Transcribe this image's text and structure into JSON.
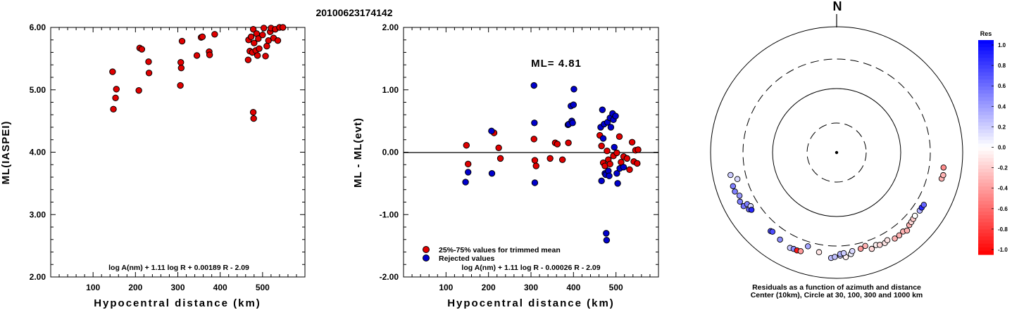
{
  "title": "20100623174142",
  "chart_data": [
    {
      "type": "scatter",
      "ylabel": "ML(IASPEI)",
      "xlabel": "Hypocentral distance (km)",
      "xlim": [
        0,
        600
      ],
      "ylim": [
        2.0,
        6.0
      ],
      "xticks": [
        "100",
        "200",
        "300",
        "400",
        "500"
      ],
      "yticks": [
        "2.00",
        "3.00",
        "4.00",
        "5.00",
        "6.00"
      ],
      "formula": "log A(nm) + 1.11 log R + 0.00189 R - 2.09",
      "point_color": "#e00000",
      "points": [
        [
          146,
          5.29
        ],
        [
          148,
          4.69
        ],
        [
          153,
          4.87
        ],
        [
          155,
          5.01
        ],
        [
          208,
          4.99
        ],
        [
          210,
          5.67
        ],
        [
          215,
          5.65
        ],
        [
          231,
          5.45
        ],
        [
          232,
          5.27
        ],
        [
          306,
          5.07
        ],
        [
          307,
          5.44
        ],
        [
          308,
          5.35
        ],
        [
          310,
          5.78
        ],
        [
          345,
          5.55
        ],
        [
          355,
          5.84
        ],
        [
          358,
          5.85
        ],
        [
          374,
          5.61
        ],
        [
          375,
          5.56
        ],
        [
          387,
          5.89
        ],
        [
          466,
          5.48
        ],
        [
          467,
          5.8
        ],
        [
          470,
          5.62
        ],
        [
          473,
          5.85
        ],
        [
          476,
          5.6
        ],
        [
          478,
          5.97
        ],
        [
          478,
          4.64
        ],
        [
          479,
          4.54
        ],
        [
          480,
          5.75
        ],
        [
          484,
          5.63
        ],
        [
          486,
          5.9
        ],
        [
          488,
          5.55
        ],
        [
          490,
          5.82
        ],
        [
          492,
          5.66
        ],
        [
          500,
          5.88
        ],
        [
          503,
          5.99
        ],
        [
          507,
          5.54
        ],
        [
          510,
          5.7
        ],
        [
          514,
          5.79
        ],
        [
          518,
          5.93
        ],
        [
          520,
          5.99
        ],
        [
          526,
          5.83
        ],
        [
          530,
          5.97
        ],
        [
          536,
          5.79
        ],
        [
          540,
          6.0
        ],
        [
          548,
          6.0
        ]
      ]
    },
    {
      "type": "scatter",
      "ylabel": "ML - ML(evt)",
      "xlabel": "Hypocentral distance (km)",
      "xlim": [
        0,
        600
      ],
      "ylim": [
        -2.0,
        2.0
      ],
      "xticks": [
        "100",
        "200",
        "300",
        "400",
        "500"
      ],
      "yticks": [
        "-2.00",
        "-1.00",
        "0.00",
        "1.00",
        "2.00"
      ],
      "annotation": "ML= 4.81",
      "formula": "log A(nm) + 1.11 log R - 0.00026 R - 2.09",
      "legend": [
        {
          "label": "25%-75% values for trimmed mean",
          "color": "#e00000"
        },
        {
          "label": "Rejected values",
          "color": "#0000cc"
        }
      ],
      "series": [
        {
          "color": "#e00000",
          "points": [
            [
              148,
              0.11
            ],
            [
              152,
              -0.19
            ],
            [
              213,
              0.31
            ],
            [
              224,
              0.07
            ],
            [
              228,
              -0.1
            ],
            [
              307,
              0.21
            ],
            [
              309,
              -0.13
            ],
            [
              312,
              -0.22
            ],
            [
              345,
              -0.1
            ],
            [
              357,
              0.15
            ],
            [
              362,
              0.13
            ],
            [
              374,
              -0.12
            ],
            [
              388,
              0.15
            ],
            [
              462,
              0.27
            ],
            [
              466,
              0.1
            ],
            [
              470,
              -0.17
            ],
            [
              474,
              -0.22
            ],
            [
              479,
              0.02
            ],
            [
              482,
              -0.12
            ],
            [
              486,
              -0.19
            ],
            [
              494,
              -0.06
            ],
            [
              502,
              -0.01
            ],
            [
              508,
              0.25
            ],
            [
              512,
              -0.16
            ],
            [
              518,
              -0.07
            ],
            [
              526,
              -0.1
            ],
            [
              532,
              -0.28
            ],
            [
              538,
              0.16
            ],
            [
              542,
              -0.15
            ],
            [
              546,
              0.03
            ],
            [
              550,
              -0.18
            ],
            [
              552,
              0.04
            ]
          ]
        },
        {
          "color": "#0000cc",
          "points": [
            [
              146,
              -0.48
            ],
            [
              152,
              -0.32
            ],
            [
              207,
              0.34
            ],
            [
              208,
              -0.34
            ],
            [
              307,
              1.07
            ],
            [
              308,
              0.47
            ],
            [
              309,
              -0.49
            ],
            [
              387,
              0.44
            ],
            [
              389,
              0.45
            ],
            [
              394,
              0.74
            ],
            [
              396,
              0.5
            ],
            [
              398,
              0.47
            ],
            [
              400,
              0.76
            ],
            [
              401,
              1.01
            ],
            [
              464,
              0.4
            ],
            [
              466,
              -0.46
            ],
            [
              468,
              0.68
            ],
            [
              470,
              0.22
            ],
            [
              472,
              0.45
            ],
            [
              474,
              -0.34
            ],
            [
              476,
              -0.36
            ],
            [
              477,
              -1.3
            ],
            [
              478,
              -1.41
            ],
            [
              480,
              0.48
            ],
            [
              482,
              -0.3
            ],
            [
              484,
              -0.38
            ],
            [
              486,
              0.55
            ],
            [
              488,
              0.4
            ],
            [
              492,
              0.62
            ],
            [
              494,
              0.52
            ],
            [
              496,
              0.08
            ],
            [
              499,
              0.58
            ],
            [
              502,
              -0.34
            ],
            [
              504,
              -0.5
            ],
            [
              509,
              -0.26
            ],
            [
              518,
              -0.24
            ]
          ]
        }
      ]
    },
    {
      "type": "scatter",
      "subtype": "polar residual map",
      "north_label": "N",
      "caption_line1": "Residuals as a function of azimuth and distance",
      "caption_line2": "Center (10km), Circle at 30, 100, 300 and 1000 km",
      "rings_km": [
        30,
        100,
        300,
        1000
      ],
      "colorbar": {
        "title": "Res",
        "ticks": [
          "1.0",
          "0.8",
          "0.6",
          "0.4",
          "0.2",
          "0.0",
          "-0.2",
          "-0.4",
          "-0.6",
          "-0.8",
          "-1.0"
        ],
        "max_color": "#0000ff",
        "zero_color": "#ffffff",
        "min_color": "#ff0000"
      },
      "stations": [
        {
          "az": 258,
          "dist": 520,
          "res": 0.2
        },
        {
          "az": 255,
          "dist": 420,
          "res": 0.15
        },
        {
          "az": 252,
          "dist": 530,
          "res": 0.5
        },
        {
          "az": 249,
          "dist": 530,
          "res": 0.5
        },
        {
          "az": 246,
          "dist": 480,
          "res": 0.4
        },
        {
          "az": 243,
          "dist": 520,
          "res": 0.5
        },
        {
          "az": 240,
          "dist": 500,
          "res": 0.55
        },
        {
          "az": 240,
          "dist": 430,
          "res": 0.5
        },
        {
          "az": 237,
          "dist": 450,
          "res": 0.6
        },
        {
          "az": 238,
          "dist": 400,
          "res": 0.15
        },
        {
          "az": 236,
          "dist": 420,
          "res": 0.85
        },
        {
          "az": 220,
          "dist": 420,
          "res": 0.7
        },
        {
          "az": 219,
          "dist": 410,
          "res": 0.7
        },
        {
          "az": 213,
          "dist": 440,
          "res": 0.45
        },
        {
          "az": 206,
          "dist": 480,
          "res": 0.2
        },
        {
          "az": 204,
          "dist": 470,
          "res": 0.45
        },
        {
          "az": 202,
          "dist": 470,
          "res": -0.9
        },
        {
          "az": 200,
          "dist": 460,
          "res": -0.4
        },
        {
          "az": 197,
          "dist": 355,
          "res": 0.35
        },
        {
          "az": 190,
          "dist": 400,
          "res": -0.1
        },
        {
          "az": 183,
          "dist": 470,
          "res": 0.25
        },
        {
          "az": 181,
          "dist": 450,
          "res": 0.25
        },
        {
          "az": 178,
          "dist": 430,
          "res": 0.2
        },
        {
          "az": 178,
          "dist": 405,
          "res": 0.3
        },
        {
          "az": 175,
          "dist": 460,
          "res": -0.05
        },
        {
          "az": 176,
          "dist": 395,
          "res": 0.2
        },
        {
          "az": 172,
          "dist": 420,
          "res": 0.05
        },
        {
          "az": 171,
          "dist": 380,
          "res": 0.15
        },
        {
          "az": 166,
          "dist": 370,
          "res": -0.4
        },
        {
          "az": 163,
          "dist": 350,
          "res": -0.3
        },
        {
          "az": 160,
          "dist": 420,
          "res": -0.15
        },
        {
          "az": 157,
          "dist": 390,
          "res": -0.05
        },
        {
          "az": 155,
          "dist": 410,
          "res": -0.15
        },
        {
          "az": 152,
          "dist": 420,
          "res": -0.1
        },
        {
          "az": 150,
          "dist": 400,
          "res": -0.1
        },
        {
          "az": 146,
          "dist": 440,
          "res": -0.3
        },
        {
          "az": 143,
          "dist": 440,
          "res": -0.3
        },
        {
          "az": 140,
          "dist": 430,
          "res": -0.3
        },
        {
          "az": 138,
          "dist": 460,
          "res": -0.3
        },
        {
          "az": 135,
          "dist": 420,
          "res": -0.3
        },
        {
          "az": 133,
          "dist": 410,
          "res": -0.15
        },
        {
          "az": 131,
          "dist": 400,
          "res": -0.2
        },
        {
          "az": 129,
          "dist": 390,
          "res": 0.0
        },
        {
          "az": 125,
          "dist": 400,
          "res": 0.3
        },
        {
          "az": 123,
          "dist": 400,
          "res": 0.85
        },
        {
          "az": 121,
          "dist": 405,
          "res": 0.6
        },
        {
          "az": 104,
          "dist": 515,
          "res": -0.3
        },
        {
          "az": 102,
          "dist": 530,
          "res": -0.3
        },
        {
          "az": 98,
          "dist": 510,
          "res": -0.45
        }
      ]
    }
  ]
}
